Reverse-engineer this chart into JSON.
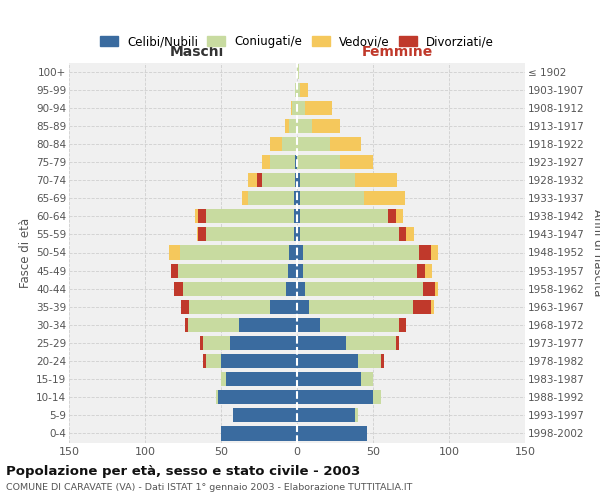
{
  "age_groups": [
    "100+",
    "95-99",
    "90-94",
    "85-89",
    "80-84",
    "75-79",
    "70-74",
    "65-69",
    "60-64",
    "55-59",
    "50-54",
    "45-49",
    "40-44",
    "35-39",
    "30-34",
    "25-29",
    "20-24",
    "15-19",
    "10-14",
    "5-9",
    "0-4"
  ],
  "birth_years": [
    "≤ 1902",
    "1903-1907",
    "1908-1912",
    "1913-1917",
    "1918-1922",
    "1923-1927",
    "1928-1932",
    "1933-1937",
    "1938-1942",
    "1943-1947",
    "1948-1952",
    "1953-1957",
    "1958-1962",
    "1963-1967",
    "1968-1972",
    "1973-1977",
    "1978-1982",
    "1983-1987",
    "1988-1992",
    "1993-1997",
    "1998-2002"
  ],
  "male_celibi": [
    0,
    0,
    0,
    0,
    0,
    1,
    1,
    2,
    2,
    2,
    5,
    6,
    7,
    18,
    38,
    44,
    50,
    47,
    52,
    42,
    50
  ],
  "male_coniugati": [
    0,
    1,
    3,
    5,
    10,
    17,
    22,
    30,
    58,
    58,
    72,
    72,
    68,
    53,
    34,
    18,
    10,
    3,
    1,
    0,
    0
  ],
  "male_vedovi": [
    0,
    0,
    1,
    3,
    8,
    5,
    6,
    4,
    2,
    1,
    7,
    0,
    0,
    0,
    0,
    0,
    0,
    0,
    0,
    0,
    0
  ],
  "male_divorziati": [
    0,
    0,
    0,
    0,
    0,
    0,
    3,
    0,
    5,
    5,
    0,
    5,
    6,
    5,
    2,
    2,
    2,
    0,
    0,
    0,
    0
  ],
  "female_nubili": [
    0,
    0,
    0,
    0,
    0,
    0,
    2,
    2,
    2,
    2,
    4,
    4,
    5,
    8,
    15,
    32,
    40,
    42,
    50,
    38,
    46
  ],
  "female_coniugate": [
    1,
    2,
    5,
    10,
    22,
    28,
    36,
    42,
    58,
    65,
    76,
    75,
    78,
    68,
    52,
    33,
    15,
    8,
    5,
    2,
    0
  ],
  "female_vedove": [
    0,
    5,
    18,
    18,
    20,
    22,
    28,
    27,
    5,
    5,
    5,
    5,
    2,
    2,
    0,
    0,
    0,
    0,
    0,
    0,
    0
  ],
  "female_divorziate": [
    0,
    0,
    0,
    0,
    0,
    0,
    0,
    0,
    5,
    5,
    8,
    5,
    8,
    12,
    5,
    2,
    2,
    0,
    0,
    0,
    0
  ],
  "colors_celibi": "#3a6b9f",
  "colors_coniugati": "#c8dba0",
  "colors_vedovi": "#f5c85c",
  "colors_divorziati": "#c0392b",
  "xlim": 150,
  "title": "Popolazione per età, sesso e stato civile - 2003",
  "subtitle": "COMUNE DI CARAVATE (VA) - Dati ISTAT 1° gennaio 2003 - Elaborazione TUTTITALIA.IT",
  "legend_labels": [
    "Celibi/Nubili",
    "Coniugati/e",
    "Vedovi/e",
    "Divorziati/e"
  ],
  "bg_color": "#ffffff",
  "plot_bg": "#f0f0f0"
}
